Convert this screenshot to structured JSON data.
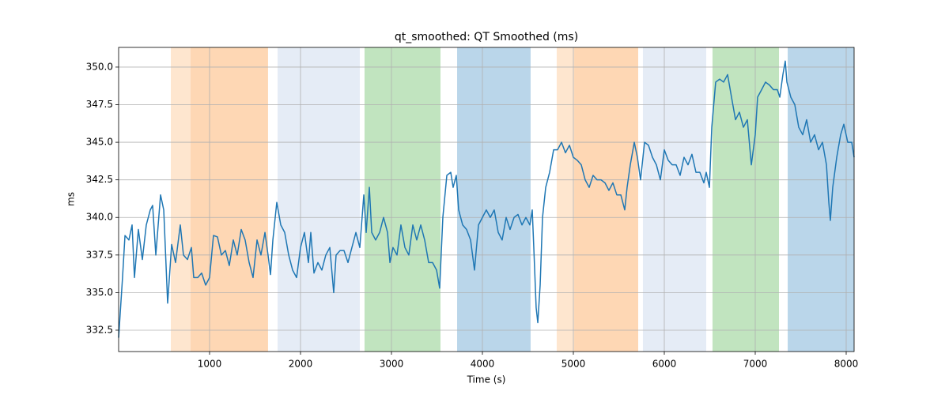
{
  "chart_data": {
    "type": "line",
    "title": "qt_smoothed: QT Smoothed (ms)",
    "x_label": "Time (s)",
    "y_label": "ms",
    "xlim": [
      0,
      8087
    ],
    "ylim": [
      331.08,
      351.31
    ],
    "xticks": [
      1000,
      2000,
      3000,
      4000,
      5000,
      6000,
      7000,
      8000
    ],
    "yticks": [
      332.5,
      {
        "value": 335,
        "label": "335.0"
      },
      337.5,
      {
        "value": 340,
        "label": "340.0"
      },
      342.5,
      {
        "value": 345,
        "label": "345.0"
      },
      347.5,
      {
        "value": 350,
        "label": "350.0"
      }
    ],
    "grid": true,
    "spans": [
      {
        "start": 574,
        "end": 791,
        "color": "#fee6cf"
      },
      {
        "start": 791,
        "end": 1643,
        "color": "#fed7b4"
      },
      {
        "start": 1748,
        "end": 2652,
        "color": "#e5ecf6"
      },
      {
        "start": 2704,
        "end": 3539,
        "color": "#c1e4bf"
      },
      {
        "start": 3722,
        "end": 4530,
        "color": "#bad6ea"
      },
      {
        "start": 4817,
        "end": 5009,
        "color": "#fee6cf"
      },
      {
        "start": 5009,
        "end": 5713,
        "color": "#fed7b4"
      },
      {
        "start": 5765,
        "end": 6461,
        "color": "#e5ecf6"
      },
      {
        "start": 6530,
        "end": 7261,
        "color": "#c1e4bf"
      },
      {
        "start": 7357,
        "end": 8087,
        "color": "#bad6ea"
      }
    ],
    "x": [
      0,
      43,
      70,
      113,
      148,
      174,
      217,
      261,
      304,
      348,
      374,
      409,
      461,
      496,
      539,
      583,
      626,
      678,
      713,
      757,
      800,
      826,
      870,
      913,
      957,
      1000,
      1043,
      1087,
      1130,
      1174,
      1217,
      1261,
      1304,
      1348,
      1391,
      1435,
      1478,
      1522,
      1565,
      1609,
      1643,
      1670,
      1696,
      1739,
      1783,
      1826,
      1870,
      1913,
      1957,
      2000,
      2043,
      2087,
      2113,
      2148,
      2191,
      2235,
      2278,
      2322,
      2365,
      2391,
      2435,
      2478,
      2522,
      2565,
      2609,
      2652,
      2696,
      2722,
      2757,
      2783,
      2826,
      2870,
      2913,
      2957,
      2983,
      3017,
      3061,
      3104,
      3148,
      3191,
      3235,
      3278,
      3322,
      3365,
      3409,
      3452,
      3496,
      3530,
      3565,
      3609,
      3652,
      3678,
      3713,
      3739,
      3783,
      3826,
      3870,
      3913,
      3957,
      4000,
      4043,
      4087,
      4130,
      4174,
      4217,
      4261,
      4304,
      4348,
      4391,
      4435,
      4478,
      4522,
      4548,
      4565,
      4591,
      4609,
      4635,
      4661,
      4696,
      4739,
      4783,
      4826,
      4870,
      4913,
      4957,
      5000,
      5043,
      5087,
      5130,
      5174,
      5217,
      5261,
      5304,
      5348,
      5391,
      5435,
      5478,
      5522,
      5565,
      5591,
      5626,
      5670,
      5704,
      5739,
      5783,
      5826,
      5870,
      5913,
      5957,
      6000,
      6043,
      6087,
      6130,
      6174,
      6217,
      6261,
      6304,
      6348,
      6391,
      6435,
      6461,
      6496,
      6522,
      6565,
      6609,
      6652,
      6696,
      6739,
      6783,
      6826,
      6870,
      6913,
      6957,
      7000,
      7026,
      7070,
      7113,
      7157,
      7200,
      7243,
      7270,
      7304,
      7330,
      7348,
      7391,
      7435,
      7478,
      7522,
      7565,
      7609,
      7652,
      7696,
      7739,
      7783,
      7809,
      7826,
      7852,
      7896,
      7939,
      7974,
      8017,
      8061,
      8087
    ],
    "series": [
      {
        "color": "#1f77b4",
        "values": [
          332,
          336,
          338.8,
          338.5,
          339.5,
          336,
          339.2,
          337.2,
          339.5,
          340.5,
          340.8,
          337.5,
          341.5,
          340.5,
          334.3,
          338.2,
          337,
          339.5,
          337.5,
          337.2,
          338,
          336,
          336,
          336.3,
          335.5,
          336,
          338.8,
          338.7,
          337.5,
          337.8,
          336.8,
          338.5,
          337.5,
          339.2,
          338.5,
          337,
          336,
          338.5,
          337.5,
          339,
          337.5,
          336.2,
          338.5,
          341,
          339.5,
          339,
          337.5,
          336.5,
          336,
          338,
          339,
          337,
          339,
          336.3,
          337,
          336.5,
          337.5,
          338,
          335,
          337.5,
          337.8,
          337.8,
          337,
          338,
          339,
          338,
          341.5,
          339,
          342,
          339,
          338.5,
          339,
          340,
          339,
          337,
          338,
          337.5,
          339.5,
          338,
          337.5,
          339.5,
          338.5,
          339.5,
          338.5,
          337,
          337,
          336.5,
          335.3,
          340,
          342.8,
          343,
          342,
          342.8,
          340.5,
          339.5,
          339.2,
          338.5,
          336.5,
          339.5,
          340,
          340.5,
          340,
          340.5,
          339,
          338.5,
          340,
          339.2,
          340,
          340.2,
          339.5,
          340,
          339.5,
          340.5,
          338,
          334,
          333,
          335.5,
          340,
          342,
          343,
          344.5,
          344.5,
          345,
          344.3,
          344.8,
          344,
          343.8,
          343.5,
          342.5,
          342,
          342.8,
          342.5,
          342.5,
          342.3,
          341.8,
          342.3,
          341.5,
          341.5,
          340.5,
          342,
          343.5,
          345,
          344,
          342.5,
          345,
          344.8,
          344,
          343.5,
          342.5,
          344.5,
          343.8,
          343.5,
          343.5,
          342.8,
          344,
          343.5,
          344.2,
          343,
          343,
          342.3,
          343,
          342,
          346,
          349,
          349.2,
          349,
          349.5,
          348,
          346.5,
          347,
          346,
          346.5,
          343.5,
          345.5,
          348,
          348.5,
          349,
          348.8,
          348.5,
          348.5,
          348,
          349.5,
          350.4,
          349,
          348,
          347.5,
          346,
          345.5,
          346.5,
          345,
          345.5,
          344.5,
          345,
          343.5,
          341,
          339.8,
          342,
          344,
          345.5,
          346.2,
          345,
          345,
          344
        ]
      }
    ]
  }
}
